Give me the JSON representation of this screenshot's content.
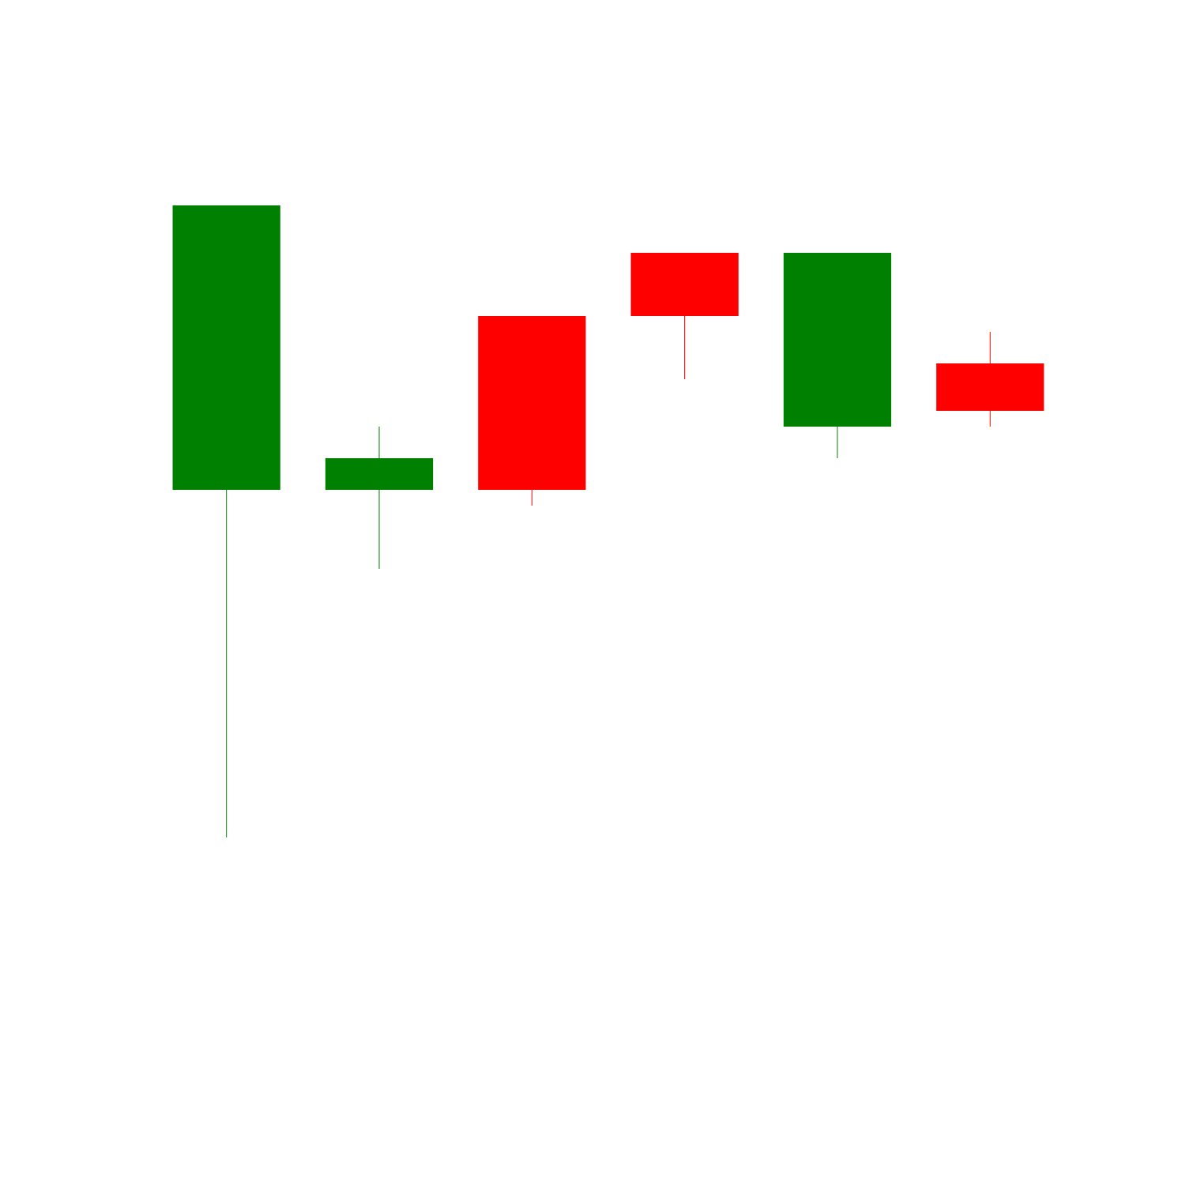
{
  "chart_data": {
    "type": "candlestick",
    "title": "",
    "xlabel": "",
    "ylabel": "",
    "axes_visible": false,
    "grid": false,
    "legend": "none",
    "ylim": [
      0,
      29
    ],
    "colors": {
      "up": "#008000",
      "down": "#ff0000",
      "background": "#ffffff"
    },
    "candles": [
      {
        "open": 18,
        "high": 27,
        "low": 7,
        "close": 27,
        "direction": "up"
      },
      {
        "open": 18,
        "high": 20,
        "low": 15.5,
        "close": 19,
        "direction": "up"
      },
      {
        "open": 23.5,
        "high": 23.5,
        "low": 17.5,
        "close": 18,
        "direction": "down"
      },
      {
        "open": 25.5,
        "high": 25.5,
        "low": 21.5,
        "close": 23.5,
        "direction": "down"
      },
      {
        "open": 20,
        "high": 25.5,
        "low": 19,
        "close": 25.5,
        "direction": "up"
      },
      {
        "open": 22,
        "high": 23,
        "low": 20,
        "close": 20.5,
        "direction": "down"
      }
    ]
  }
}
